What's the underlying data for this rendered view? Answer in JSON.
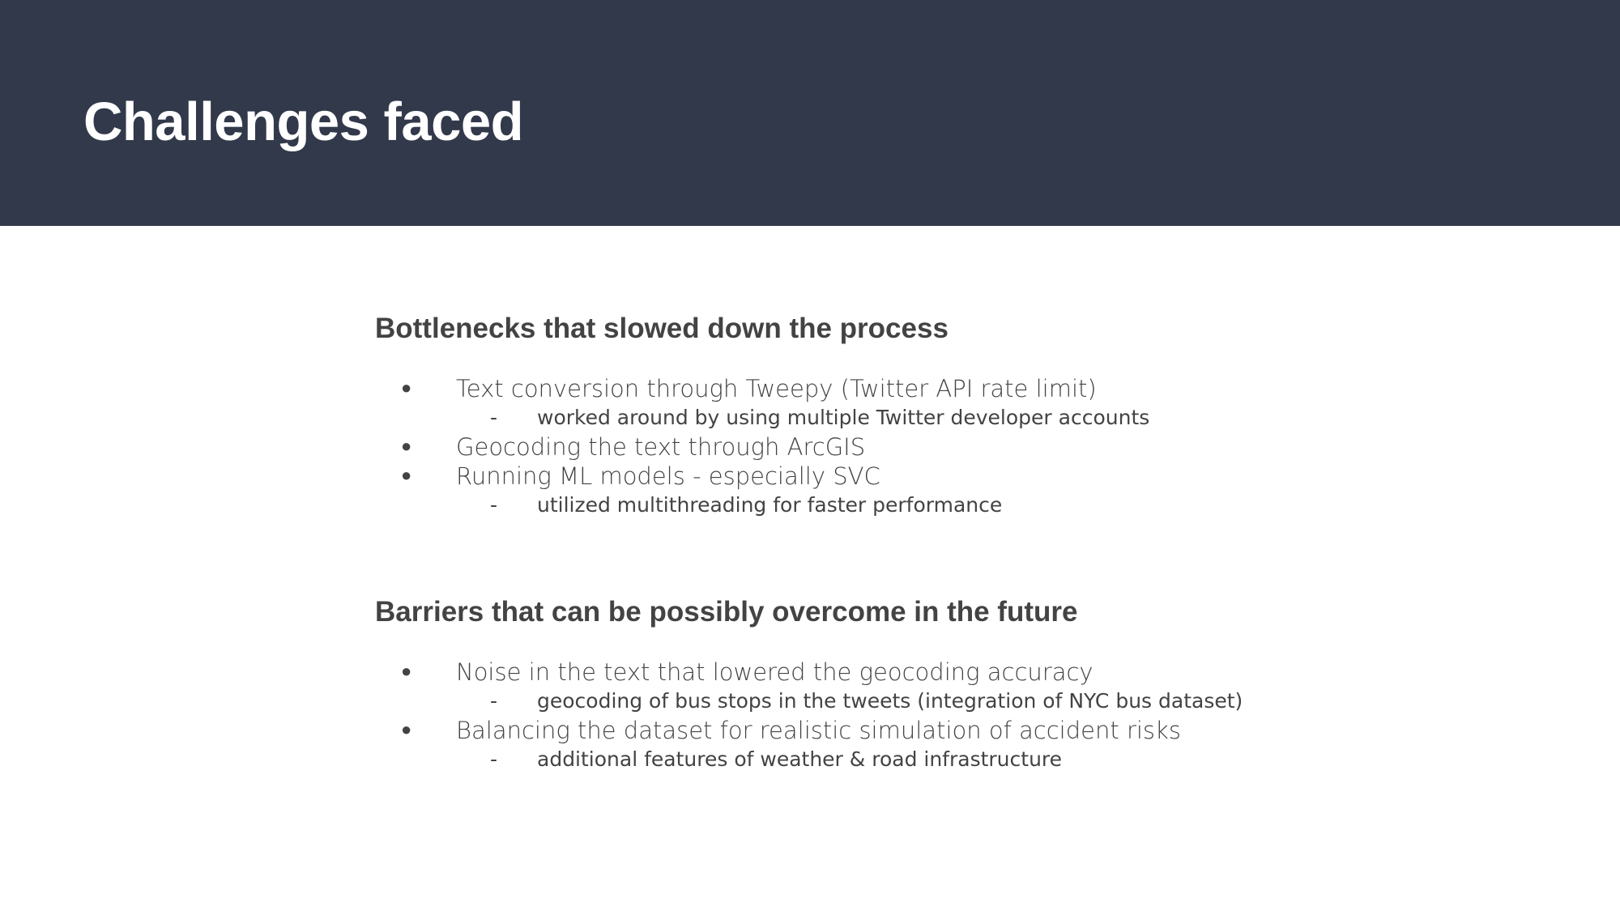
{
  "slide": {
    "title": "Challenges faced",
    "colors": {
      "header_background": "#32394b",
      "title_text": "#ffffff",
      "body_text": "#434343",
      "page_background": "#ffffff"
    }
  },
  "sections": [
    {
      "heading": "Bottlenecks that slowed down the process",
      "items": [
        {
          "level": 1,
          "marker": "●",
          "text": "Text conversion through Tweepy (Twitter API rate limit)"
        },
        {
          "level": 2,
          "marker": "-",
          "text": "worked around by using multiple Twitter developer accounts"
        },
        {
          "level": 1,
          "marker": "●",
          "text": "Geocoding the text through ArcGIS"
        },
        {
          "level": 1,
          "marker": "●",
          "text": "Running ML models - especially SVC"
        },
        {
          "level": 2,
          "marker": "-",
          "text": "utilized multithreading for faster performance"
        }
      ]
    },
    {
      "heading": "Barriers that can be possibly overcome in the future",
      "items": [
        {
          "level": 1,
          "marker": "●",
          "text": "Noise in the text that lowered the geocoding accuracy"
        },
        {
          "level": 2,
          "marker": "-",
          "text": "geocoding of bus stops in the tweets (integration of NYC bus dataset)"
        },
        {
          "level": 1,
          "marker": "●",
          "text": "Balancing the dataset for realistic simulation of accident risks"
        },
        {
          "level": 2,
          "marker": "-",
          "text": "additional features of weather & road infrastructure"
        }
      ]
    }
  ]
}
